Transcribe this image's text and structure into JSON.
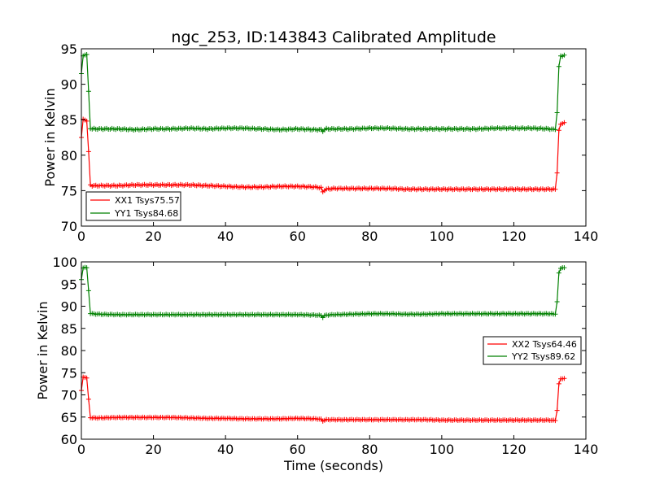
{
  "chart_data": [
    {
      "type": "line",
      "title": "ngc_253, ID:143843 Calibrated Amplitude",
      "xlabel": "",
      "ylabel": "Power in Kelvin",
      "xlim": [
        0,
        140
      ],
      "ylim": [
        70,
        95
      ],
      "xticks": [
        "0",
        "20",
        "40",
        "60",
        "80",
        "100",
        "120",
        "140"
      ],
      "yticks": [
        "70",
        "75",
        "80",
        "85",
        "90",
        "95"
      ],
      "legend_position": "lower-left",
      "series": [
        {
          "name": "XX1 Tsys75.57",
          "color": "#ff0000",
          "x": [
            0,
            0.5,
            1,
            1.5,
            2,
            2.5,
            3,
            5,
            10,
            15,
            20,
            25,
            30,
            35,
            40,
            45,
            50,
            55,
            60,
            65,
            66.5,
            67,
            67.5,
            68,
            70,
            75,
            80,
            85,
            90,
            95,
            100,
            105,
            110,
            115,
            120,
            125,
            130,
            131.5,
            132,
            132.5,
            133,
            133.5,
            134
          ],
          "y": [
            82.5,
            85,
            85,
            84.8,
            80.5,
            75.8,
            75.7,
            75.7,
            75.7,
            75.8,
            75.8,
            75.8,
            75.8,
            75.7,
            75.6,
            75.5,
            75.5,
            75.6,
            75.6,
            75.5,
            75.4,
            74.8,
            75.1,
            75.2,
            75.3,
            75.3,
            75.3,
            75.3,
            75.2,
            75.2,
            75.2,
            75.2,
            75.2,
            75.2,
            75.2,
            75.2,
            75.2,
            75.2,
            77.5,
            83.5,
            84.3,
            84.5,
            84.6
          ]
        },
        {
          "name": "YY1 Tsys84.68",
          "color": "#008000",
          "x": [
            0,
            0.5,
            1,
            1.5,
            2,
            2.5,
            3,
            5,
            10,
            15,
            20,
            25,
            30,
            35,
            40,
            45,
            50,
            55,
            60,
            65,
            66.5,
            67,
            67.5,
            68,
            70,
            75,
            80,
            85,
            90,
            95,
            100,
            105,
            110,
            115,
            120,
            125,
            130,
            131.5,
            132,
            132.5,
            133,
            133.5,
            134
          ],
          "y": [
            91.5,
            94,
            94.2,
            94.2,
            89,
            83.8,
            83.7,
            83.7,
            83.7,
            83.6,
            83.7,
            83.7,
            83.8,
            83.7,
            83.8,
            83.8,
            83.7,
            83.6,
            83.7,
            83.6,
            83.6,
            83.4,
            83.6,
            83.7,
            83.7,
            83.7,
            83.8,
            83.8,
            83.7,
            83.7,
            83.7,
            83.7,
            83.7,
            83.8,
            83.8,
            83.8,
            83.7,
            83.6,
            86,
            92.5,
            94,
            94,
            94.1
          ]
        }
      ]
    },
    {
      "type": "line",
      "title": "",
      "xlabel": "Time (seconds)",
      "ylabel": "Power in Kelvin",
      "xlim": [
        0,
        140
      ],
      "ylim": [
        60,
        100
      ],
      "xticks": [
        "0",
        "20",
        "40",
        "60",
        "80",
        "100",
        "120",
        "140"
      ],
      "yticks": [
        "60",
        "65",
        "70",
        "75",
        "80",
        "85",
        "90",
        "95",
        "100"
      ],
      "legend_position": "center-right",
      "series": [
        {
          "name": "XX2 Tsys64.46",
          "color": "#ff0000",
          "x": [
            0,
            0.5,
            1,
            1.5,
            2,
            2.5,
            3,
            5,
            10,
            15,
            20,
            25,
            30,
            35,
            40,
            45,
            50,
            55,
            60,
            65,
            66.5,
            67,
            67.5,
            68,
            70,
            75,
            80,
            85,
            90,
            95,
            100,
            105,
            110,
            115,
            120,
            125,
            130,
            131.5,
            132,
            132.5,
            133,
            133.5,
            134
          ],
          "y": [
            71,
            74,
            74,
            73.8,
            69,
            64.9,
            64.8,
            64.8,
            64.9,
            64.9,
            64.9,
            64.9,
            64.8,
            64.7,
            64.7,
            64.6,
            64.6,
            64.6,
            64.7,
            64.6,
            64.5,
            64.1,
            64.3,
            64.4,
            64.4,
            64.4,
            64.4,
            64.4,
            64.4,
            64.4,
            64.3,
            64.3,
            64.3,
            64.3,
            64.3,
            64.3,
            64.3,
            64.2,
            66.5,
            72.5,
            73.6,
            73.7,
            73.7
          ]
        },
        {
          "name": "YY2 Tsys89.62",
          "color": "#008000",
          "x": [
            0,
            0.5,
            1,
            1.5,
            2,
            2.5,
            3,
            5,
            10,
            15,
            20,
            25,
            30,
            35,
            40,
            45,
            50,
            55,
            60,
            65,
            66.5,
            67,
            67.5,
            68,
            70,
            75,
            80,
            85,
            90,
            95,
            100,
            105,
            110,
            115,
            120,
            125,
            130,
            131.5,
            132,
            132.5,
            133,
            133.5,
            134
          ],
          "y": [
            96,
            98.7,
            98.8,
            98.7,
            93.5,
            88.4,
            88.3,
            88.2,
            88.1,
            88.1,
            88.1,
            88.1,
            88.1,
            88.1,
            88.1,
            88.1,
            88.1,
            88.1,
            88.1,
            88,
            87.9,
            87.5,
            87.9,
            88,
            88.1,
            88.2,
            88.3,
            88.3,
            88.2,
            88.2,
            88.3,
            88.3,
            88.3,
            88.3,
            88.3,
            88.3,
            88.3,
            88.2,
            91,
            97.5,
            98.6,
            98.7,
            98.7
          ]
        }
      ]
    }
  ]
}
